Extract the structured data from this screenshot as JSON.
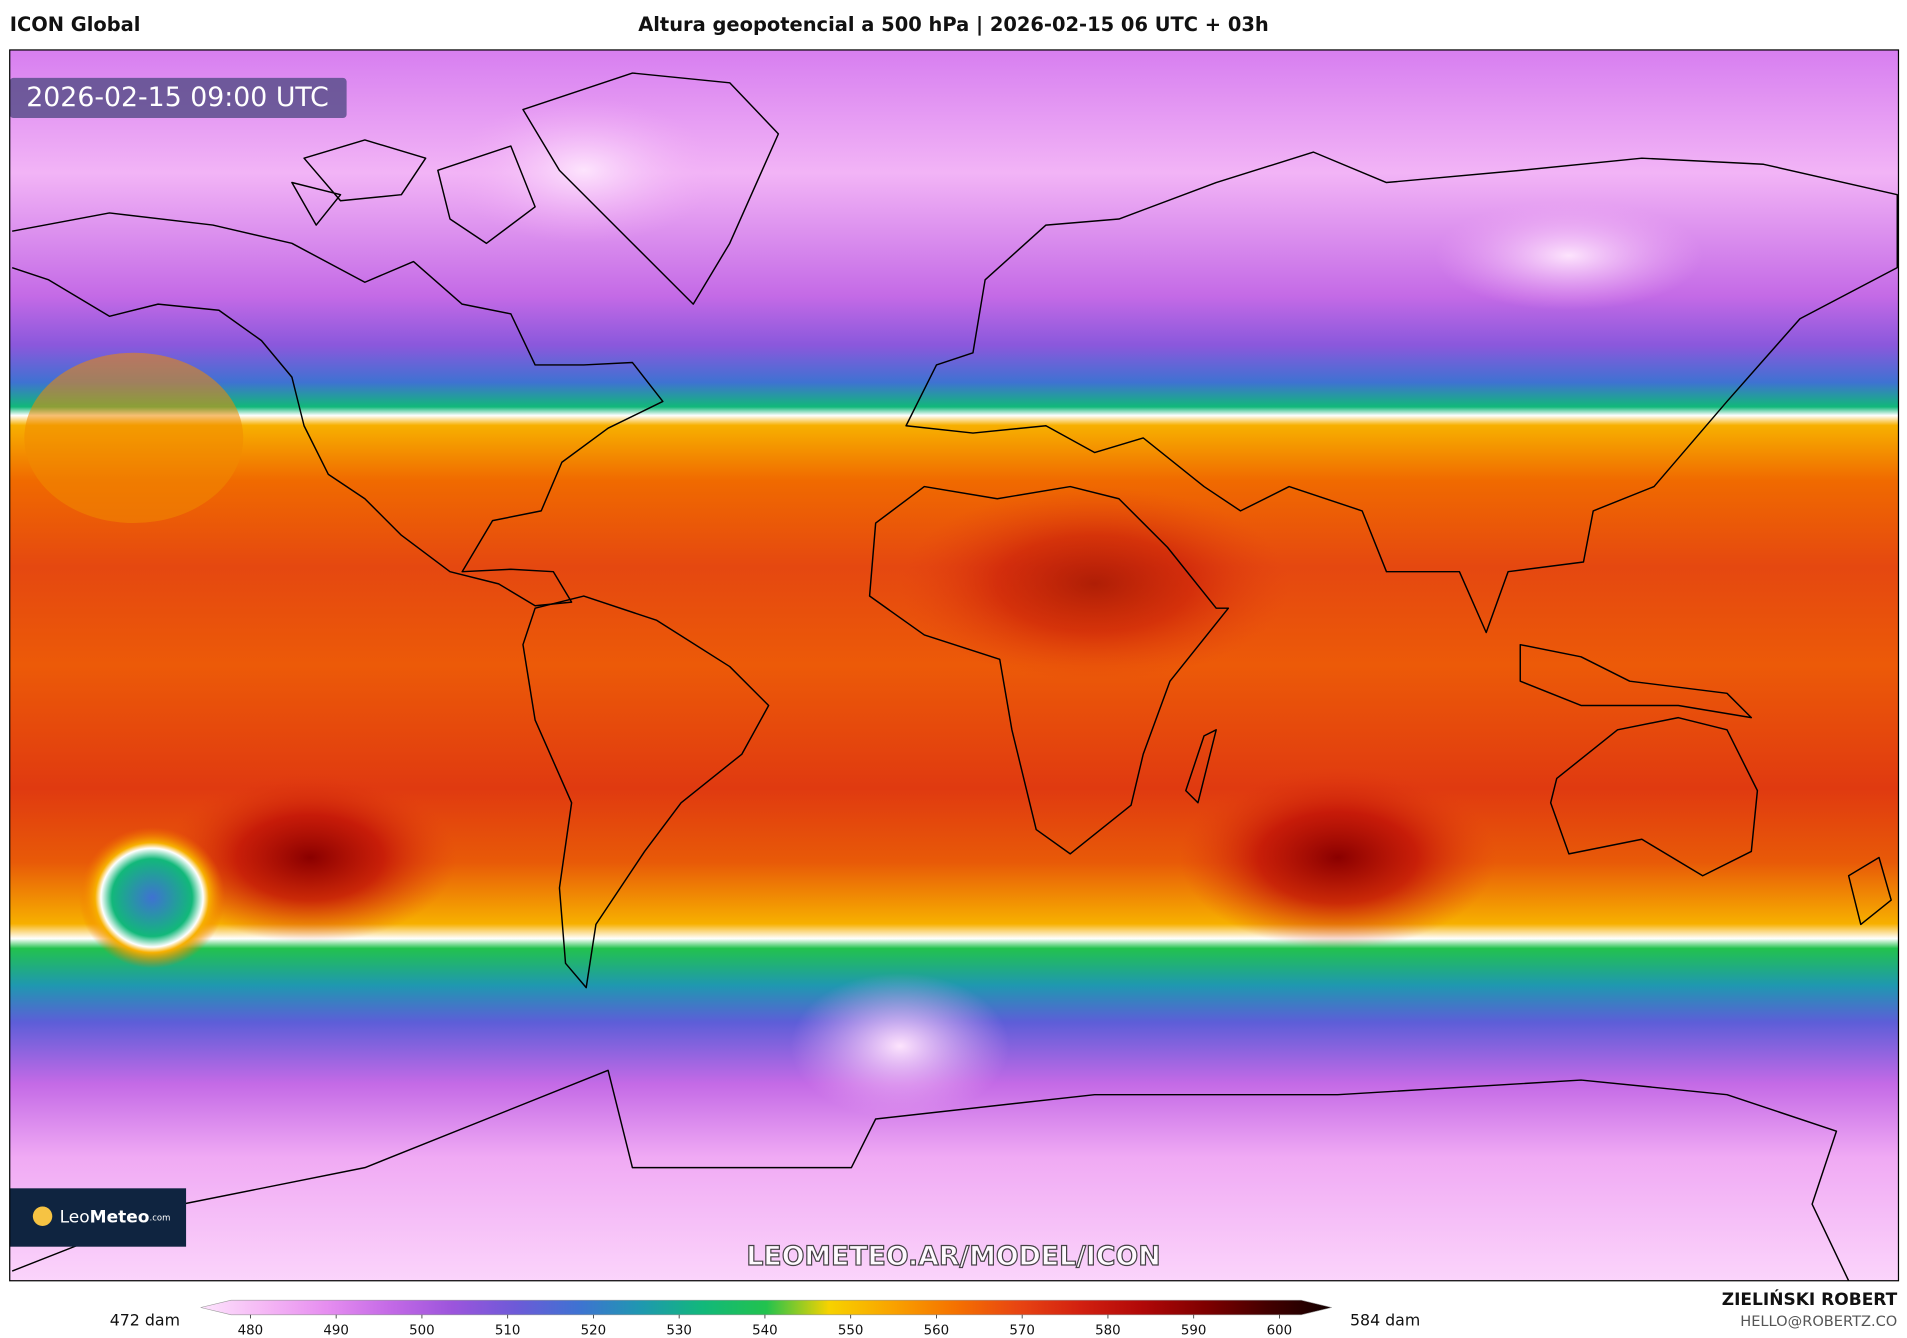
{
  "header": {
    "model": "ICON Global",
    "title": "Altura geopotencial a 500 hPa | 2026-02-15 06 UTC + 03h"
  },
  "map": {
    "valid_time": "2026-02-15 09:00 UTC",
    "logo": {
      "leo": "Leo",
      "meteo": "Meteo",
      "com": ".com"
    },
    "watermark": "LEOMETEO.AR/MODEL/ICON"
  },
  "colorbar": {
    "min_label": "472 dam",
    "max_label": "584 dam",
    "range": [
      474.2,
      606.1
    ],
    "ticks": [
      480,
      490,
      500,
      510,
      520,
      530,
      540,
      550,
      560,
      570,
      580,
      590,
      600
    ],
    "colors": [
      "#fde4fd",
      "#f5b8f5",
      "#e68ef0",
      "#c46ae6",
      "#9c55dc",
      "#6e5ad8",
      "#3f72d2",
      "#1f98b0",
      "#12b87a",
      "#22c24e",
      "#f7d200",
      "#f9a300",
      "#f57200",
      "#e84512",
      "#d22010",
      "#b00808",
      "#7e0000",
      "#420000",
      "#120000"
    ]
  },
  "credit": {
    "author": "ZIELIŃSKI ROBERT",
    "email": "HELLO@ROBERTZ.CO"
  }
}
